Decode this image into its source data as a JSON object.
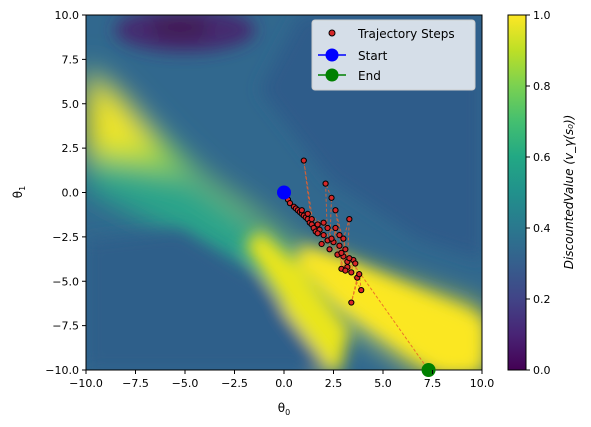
{
  "chart_data": {
    "type": "contour-scatter",
    "xlabel_base": "θ",
    "xlabel_sub": "0",
    "ylabel_base": "θ",
    "ylabel_sub": "1",
    "xlim": [
      -10,
      10
    ],
    "ylim": [
      -10,
      10
    ],
    "xticks": [
      "−10.0",
      "−7.5",
      "−5.0",
      "−2.5",
      "0.0",
      "2.5",
      "5.0",
      "7.5",
      "10.0"
    ],
    "yticks": [
      "10.0",
      "7.5",
      "5.0",
      "2.5",
      "0.0",
      "−2.5",
      "−5.0",
      "−7.5",
      "−10.0"
    ],
    "xtick_values": [
      -10,
      -7.5,
      -5,
      -2.5,
      0,
      2.5,
      5,
      7.5,
      10
    ],
    "ytick_values": [
      10,
      7.5,
      5,
      2.5,
      0,
      -2.5,
      -5,
      -7.5,
      -10
    ],
    "colorbar": {
      "label": "DiscountedValue (v_γ(s₀))",
      "range": [
        0,
        1
      ],
      "ticks": [
        "0.0",
        "0.2",
        "0.4",
        "0.6",
        "0.8",
        "1.0"
      ],
      "tick_values": [
        0,
        0.2,
        0.4,
        0.6,
        0.8,
        1.0
      ],
      "colormap": "viridis"
    },
    "legend": {
      "position": "top-right",
      "entries": [
        {
          "label": "Trajectory Steps",
          "marker": "small-circle",
          "color": "#d62728"
        },
        {
          "label": "Start",
          "marker": "circle",
          "color": "#0000ff"
        },
        {
          "label": "End",
          "marker": "circle",
          "color": "#008000"
        }
      ]
    },
    "start": {
      "x": 0.0,
      "y": 0.0
    },
    "end": {
      "x": 7.3,
      "y": -10.0
    },
    "trajectory": [
      [
        0,
        0
      ],
      [
        0.2,
        -0.4
      ],
      [
        0.3,
        -0.6
      ],
      [
        0.5,
        -0.8
      ],
      [
        0.6,
        -0.9
      ],
      [
        0.7,
        -1.0
      ],
      [
        0.8,
        -1.1
      ],
      [
        0.9,
        -1.2
      ],
      [
        1.0,
        -1.3
      ],
      [
        1.1,
        -1.4
      ],
      [
        0.9,
        -1.0
      ],
      [
        1.2,
        -1.5
      ],
      [
        1.3,
        -1.7
      ],
      [
        1.4,
        -1.8
      ],
      [
        1.0,
        1.8
      ],
      [
        1.5,
        -2.0
      ],
      [
        1.6,
        -2.2
      ],
      [
        1.7,
        -1.8
      ],
      [
        1.8,
        -2.1
      ],
      [
        2.0,
        -2.4
      ],
      [
        1.9,
        -2.9
      ],
      [
        2.2,
        -2.7
      ],
      [
        2.1,
        0.5
      ],
      [
        2.4,
        -0.3
      ],
      [
        2.3,
        -3.2
      ],
      [
        2.5,
        -2.8
      ],
      [
        2.6,
        -2.0
      ],
      [
        2.7,
        -3.5
      ],
      [
        2.8,
        -3.0
      ],
      [
        2.9,
        -4.3
      ],
      [
        3.0,
        -3.6
      ],
      [
        2.6,
        -1.0
      ],
      [
        3.1,
        -3.2
      ],
      [
        3.2,
        -3.9
      ],
      [
        3.3,
        -1.5
      ],
      [
        3.0,
        -2.6
      ],
      [
        3.4,
        -4.5
      ],
      [
        3.5,
        -3.8
      ],
      [
        3.2,
        -4.2
      ],
      [
        3.6,
        -4.0
      ],
      [
        3.7,
        -4.8
      ],
      [
        3.4,
        -6.2
      ],
      [
        3.8,
        -4.6
      ],
      [
        3.9,
        -5.5
      ],
      [
        2.0,
        -1.7
      ],
      [
        1.7,
        -2.3
      ],
      [
        2.2,
        -2.0
      ],
      [
        1.4,
        -1.5
      ],
      [
        1.2,
        -1.2
      ],
      [
        2.8,
        -2.4
      ],
      [
        3.1,
        -4.4
      ],
      [
        2.4,
        -2.6
      ],
      [
        2.9,
        -3.4
      ],
      [
        3.3,
        -3.7
      ],
      [
        7.3,
        -10.0
      ]
    ]
  }
}
